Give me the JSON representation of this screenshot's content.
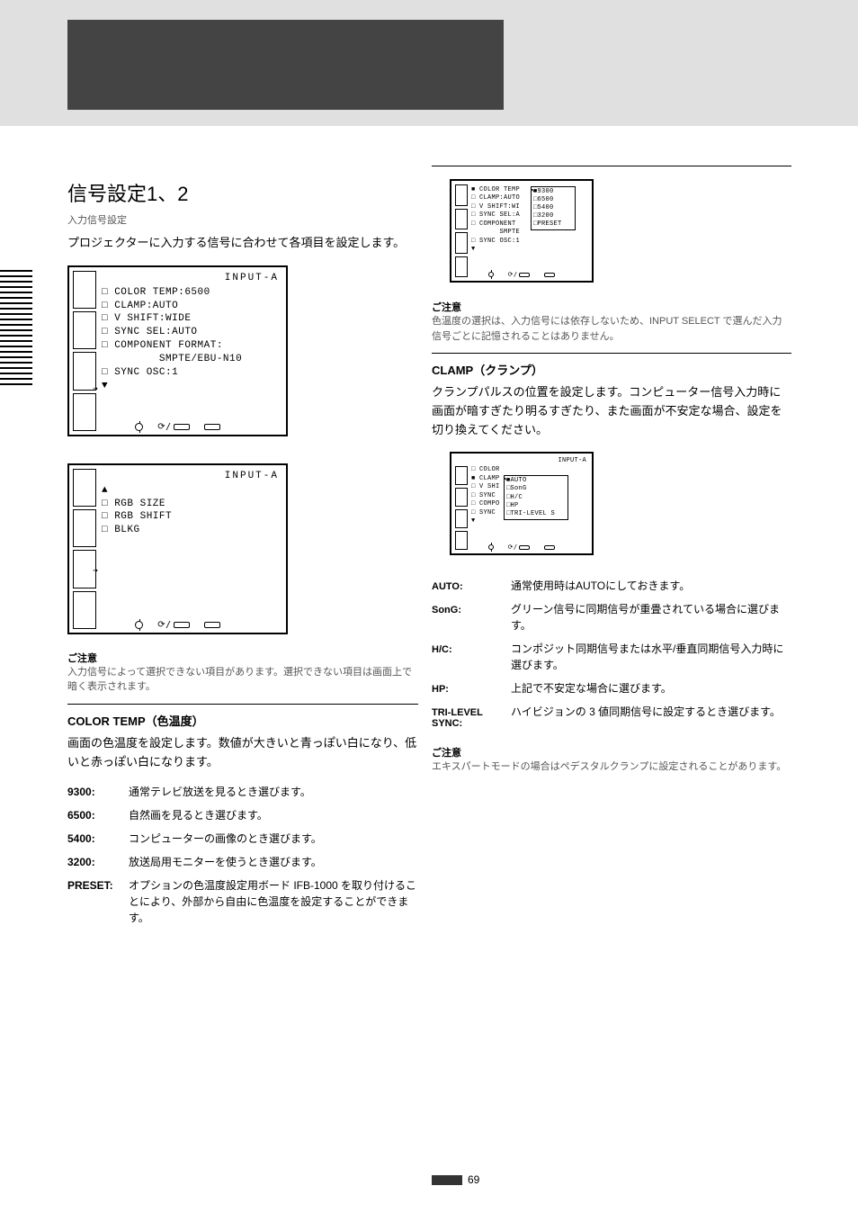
{
  "page": {
    "hash_count": 22
  },
  "left": {
    "title": "信号設定1、2",
    "subtitle": "入力信号設定",
    "intro": "プロジェクターに入力する信号に合わせて各項目を設定します。",
    "osd1": {
      "heading": "INPUT-A",
      "lines": [
        "□ COLOR TEMP:6500",
        "□ CLAMP:AUTO",
        "□ V SHIFT:WIDE",
        "□ SYNC SEL:AUTO",
        "□ COMPONENT FORMAT:",
        "         SMPTE/EBU-N10",
        "□ SYNC OSC:1",
        "▼"
      ],
      "cells": 4
    },
    "osd2": {
      "heading": "INPUT-A",
      "lines": [
        "▲",
        "□ RGB SIZE",
        "□ RGB SHIFT",
        "□ BLKG"
      ],
      "cells": 4
    },
    "note_label": "ご注意",
    "note": "入力信号によって選択できない項目があります。選択できない項目は画面上で暗く表示されます。",
    "colortemp_title": "COLOR TEMP（色温度）",
    "colortemp_body": "画面の色温度を設定します。数値が大きいと青っぽい白になり、低いと赤っぽい白になります。",
    "table_rows": [
      [
        "9300",
        "通常テレビ放送を見るとき選びます。"
      ],
      [
        "6500",
        "自然画を見るとき選びます。"
      ],
      [
        "5400",
        "コンピューターの画像のとき選びます。"
      ],
      [
        "3200",
        "放送局用モニターを使うとき選びます。"
      ],
      [
        "PRESET",
        "オプションの色温度設定用ボード IFB-1000 を取り付けることにより、外部から自由に色温度を設定することができます。"
      ]
    ]
  },
  "right": {
    "osd3": {
      "lines_main": [
        "■ COLOR TEMP",
        "□ CLAMP:AUTO",
        "□ V SHIFT:WI",
        "□ SYNC SEL:A",
        "□ COMPONENT",
        "       SMPTE",
        "□ SYNC OSC:1",
        "▼"
      ],
      "sub_lines": [
        "■9300",
        "□6500",
        "□5400",
        "□3200",
        "□PRESET"
      ],
      "cells": 4
    },
    "note_label": "ご注意",
    "note": "色温度の選択は、入力信号には依存しないため、INPUT SELECT で選んだ入力信号ごとに記憶されることはありません。",
    "clamp_title": "CLAMP（クランプ）",
    "clamp_body": "クランプパルスの位置を設定します。コンピューター信号入力時に画面が暗すぎたり明るすぎたり、また画面が不安定な場合、設定を切り換えてください。",
    "osd4": {
      "heading": "INPUT-A",
      "lines_main": [
        "□ COLOR",
        "■ CLAMP",
        "□ V SHI",
        "□ SYNC",
        "□ COMPO",
        "",
        "□ SYNC",
        "▼"
      ],
      "sub_lines": [
        "■AUTO",
        "□SonG",
        "□H/C",
        "□HP",
        "□TRI-LEVEL S"
      ],
      "cells": 4
    },
    "clamp_table": [
      [
        "AUTO",
        "通常使用時はAUTOにしておきます。"
      ],
      [
        "SonG",
        "グリーン信号に同期信号が重畳されている場合に選びます。"
      ],
      [
        "H/C",
        "コンポジット同期信号または水平/垂直同期信号入力時に選びます。"
      ],
      [
        "HP",
        "上記で不安定な場合に選びます。"
      ],
      [
        "TRI-LEVEL SYNC",
        "ハイビジョンの 3 値同期信号に設定するとき選びます。"
      ]
    ],
    "clamp_note_label": "ご注意",
    "clamp_note_body": "エキスパートモードの場合はペデスタルクランプに設定されることがあります。"
  },
  "page_number": "69"
}
